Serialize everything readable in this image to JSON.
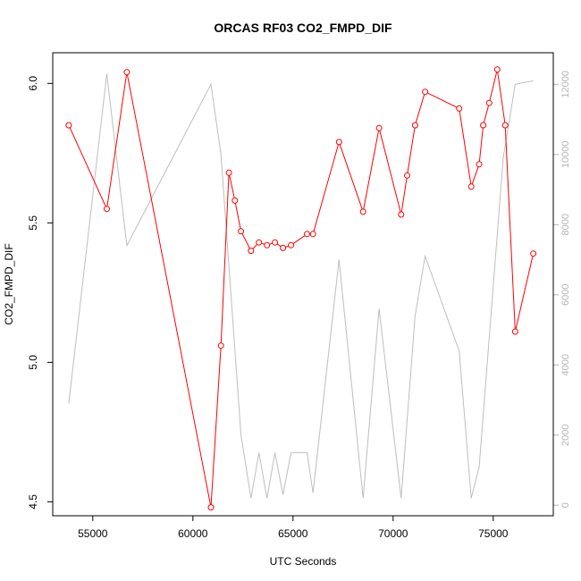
{
  "chart_data": {
    "type": "line",
    "title": "ORCAS RF03 CO2_FMPD_DIF",
    "xlabel": "UTC Seconds",
    "ylabel": "CO2_FMPD_DIF",
    "xlim": [
      53000,
      78000
    ],
    "ylim": [
      4.45,
      6.11
    ],
    "y2lim": [
      -300,
      12900
    ],
    "x_ticks": [
      55000,
      60000,
      65000,
      70000,
      75000
    ],
    "x_tick_labels": [
      "55000",
      "60000",
      "65000",
      "70000",
      "75000"
    ],
    "y_ticks": [
      4.5,
      5.0,
      5.5,
      6.0
    ],
    "y_tick_labels": [
      "4.5",
      "5.0",
      "5.5",
      "6.0"
    ],
    "y2_ticks": [
      0,
      2000,
      4000,
      6000,
      8000,
      10000,
      12000
    ],
    "y2_tick_labels": [
      "0",
      "2000",
      "4000",
      "6000",
      "8000",
      "10000",
      "12000"
    ],
    "grid": false,
    "series": [
      {
        "role": "primary",
        "color": "#ff0000",
        "marker": "open-circle",
        "x": [
          53800,
          55700,
          56700,
          60900,
          61400,
          61800,
          62100,
          62400,
          62900,
          63300,
          63700,
          64100,
          64500,
          64900,
          65700,
          66000,
          67300,
          68500,
          69300,
          70400,
          70700,
          71100,
          71600,
          73300,
          73900,
          74300,
          74500,
          74800,
          75200,
          75600,
          76100,
          77000
        ],
        "y": [
          5.85,
          5.55,
          6.04,
          4.48,
          5.06,
          5.68,
          5.58,
          5.47,
          5.4,
          5.43,
          5.42,
          5.43,
          5.41,
          5.42,
          5.46,
          5.46,
          5.79,
          5.54,
          5.84,
          5.53,
          5.67,
          5.85,
          5.97,
          5.91,
          5.63,
          5.71,
          5.85,
          5.93,
          6.05,
          5.85,
          5.11,
          5.39
        ]
      },
      {
        "role": "secondary",
        "color": "#bebebe",
        "x": [
          53800,
          55700,
          56700,
          60900,
          61400,
          62400,
          62900,
          63300,
          63700,
          64100,
          64500,
          64900,
          65700,
          66000,
          67300,
          68500,
          69300,
          70400,
          71100,
          71600,
          73300,
          73900,
          74300,
          75500,
          76100,
          77000
        ],
        "y": [
          2900,
          12300,
          7400,
          12000,
          10000,
          2000,
          200,
          1500,
          200,
          1500,
          300,
          1500,
          1500,
          350,
          7000,
          200,
          5600,
          200,
          5400,
          7100,
          4400,
          200,
          1100,
          9900,
          12000,
          12100
        ]
      }
    ]
  }
}
